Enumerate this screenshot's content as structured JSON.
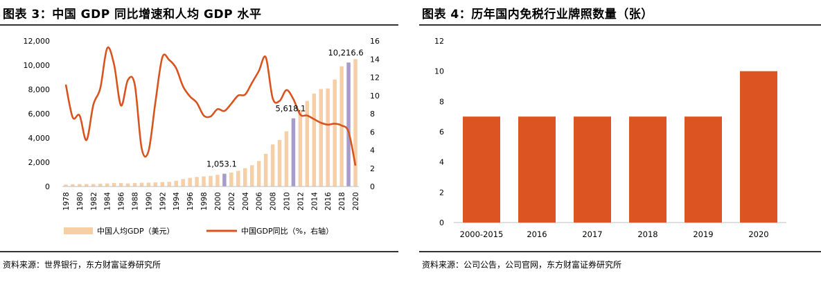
{
  "left": {
    "title": "图表 3：中国 GDP 同比增速和人均 GDP 水平",
    "source": "资料来源：世界银行，东方财富证券研究所",
    "chart_data": {
      "type": "bar+line",
      "x": [
        1978,
        1979,
        1980,
        1981,
        1982,
        1983,
        1984,
        1985,
        1986,
        1987,
        1988,
        1989,
        1990,
        1991,
        1992,
        1993,
        1994,
        1995,
        1996,
        1997,
        1998,
        1999,
        2000,
        2001,
        2002,
        2003,
        2004,
        2005,
        2006,
        2007,
        2008,
        2009,
        2010,
        2011,
        2012,
        2013,
        2014,
        2015,
        2016,
        2017,
        2018,
        2019,
        2020
      ],
      "x_tick_labels": [
        "1978",
        "1980",
        "1982",
        "1984",
        "1986",
        "1988",
        "1990",
        "1992",
        "1994",
        "1996",
        "1998",
        "2000",
        "2002",
        "2004",
        "2006",
        "2008",
        "2010",
        "2012",
        "2014",
        "2016",
        "2018",
        "2020"
      ],
      "y_left_ticks": [
        "0",
        "2,000",
        "4,000",
        "6,000",
        "8,000",
        "10,000",
        "12,000"
      ],
      "y_right_ticks": [
        "0",
        "2",
        "4",
        "6",
        "8",
        "10",
        "12",
        "14",
        "16"
      ],
      "ylim_left": [
        0,
        12000
      ],
      "ylim_right": [
        0,
        16
      ],
      "series": [
        {
          "name": "中国人均GDP（美元）",
          "type": "bar",
          "axis": "left",
          "color": "#F6CFA6",
          "highlight_color": "#A79BC9",
          "highlight_years": [
            2001,
            2011,
            2019
          ],
          "values": [
            156,
            183,
            195,
            197,
            203,
            225,
            251,
            294,
            282,
            252,
            284,
            311,
            318,
            333,
            366,
            377,
            473,
            610,
            709,
            782,
            829,
            873,
            959,
            1053,
            1149,
            1289,
            1509,
            1753,
            2099,
            2694,
            3468,
            3832,
            4550,
            5618,
            6316,
            7050,
            7651,
            8033,
            8079,
            8817,
            9905,
            10217,
            10500
          ]
        },
        {
          "name": "中国GDP同比（%，右轴）",
          "type": "line",
          "axis": "right",
          "color": "#D9531E",
          "values": [
            11.2,
            7.6,
            7.8,
            5.1,
            9.0,
            10.8,
            15.2,
            13.4,
            8.9,
            11.7,
            11.2,
            4.2,
            3.9,
            9.3,
            14.2,
            13.9,
            13.0,
            11.0,
            9.9,
            9.2,
            7.8,
            7.7,
            8.5,
            8.3,
            9.1,
            10.0,
            10.1,
            11.4,
            12.7,
            14.2,
            9.7,
            9.4,
            10.6,
            9.6,
            7.9,
            7.8,
            7.4,
            7.0,
            6.8,
            6.9,
            6.7,
            6.0,
            2.3
          ]
        }
      ],
      "annotations": [
        {
          "year": 2001,
          "value": 1053.1,
          "text": "1,053.1"
        },
        {
          "year": 2011,
          "value": 5618.1,
          "text": "5,618.1"
        },
        {
          "year": 2019,
          "value": 10216.6,
          "text": "10,216.6"
        }
      ],
      "legend": [
        {
          "label": "中国人均GDP（美元）",
          "kind": "bar",
          "color": "#F6CFA6"
        },
        {
          "label": "中国GDP同比（%，右轴）",
          "kind": "line",
          "color": "#D9531E"
        }
      ],
      "legend_position": "bottom",
      "grid": false
    }
  },
  "right": {
    "title": "图表 4：历年国内免税行业牌照数量（张）",
    "source": "资料来源：公司公告，公司官网，东方财富证券研究所",
    "chart_data": {
      "type": "bar",
      "categories": [
        "2000-2015",
        "2016",
        "2017",
        "2018",
        "2019",
        "2020"
      ],
      "values": [
        7,
        7,
        7,
        7,
        7,
        10
      ],
      "y_ticks": [
        "0",
        "2",
        "4",
        "6",
        "8",
        "10",
        "12"
      ],
      "ylim": [
        0,
        12
      ],
      "color": "#DD5423",
      "grid": false
    }
  }
}
